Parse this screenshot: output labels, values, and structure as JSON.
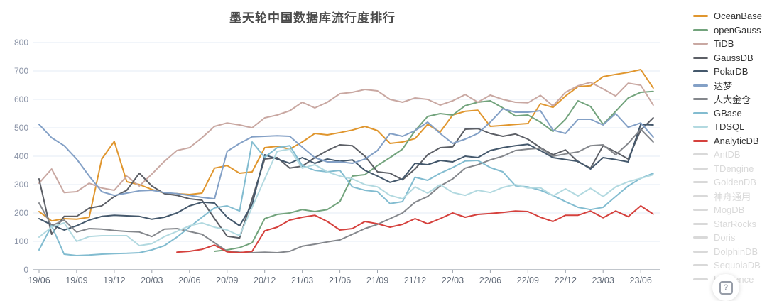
{
  "title": "墨天轮中国数据库流行度排行",
  "help_badge": {
    "icon": "?"
  },
  "colors": {
    "grid": "#E3EBF5",
    "axis": "#9CA3AD",
    "y_label": "#8C95A8",
    "x_label": "#5F6876",
    "title": "#4A4A4A",
    "legend_active_text": "#333333",
    "legend_inactive": "#D9D9D9"
  },
  "legend": {
    "inactive_items": [
      "AntDB",
      "TDengine",
      "GoldenDB",
      "神舟通用",
      "MogDB",
      "StarRocks",
      "Doris",
      "DolphinDB",
      "SequoiaDB",
      "Kyligence"
    ]
  },
  "chart_data": {
    "type": "line",
    "title": "墨天轮中国数据库流行度排行",
    "xlabel": "",
    "ylabel": "",
    "ylim": [
      0,
      800
    ],
    "yticks": [
      0,
      100,
      200,
      300,
      400,
      500,
      600,
      700,
      800
    ],
    "grid": true,
    "legend_position": "right",
    "x": [
      "19/06",
      "19/07",
      "19/08",
      "19/09",
      "19/10",
      "19/11",
      "19/12",
      "20/01",
      "20/02",
      "20/03",
      "20/04",
      "20/05",
      "20/06",
      "20/07",
      "20/08",
      "20/09",
      "20/10",
      "20/11",
      "20/12",
      "21/01",
      "21/02",
      "21/03",
      "21/04",
      "21/05",
      "21/06",
      "21/07",
      "21/08",
      "21/09",
      "21/10",
      "21/11",
      "21/12",
      "22/01",
      "22/02",
      "22/03",
      "22/04",
      "22/05",
      "22/06",
      "22/07",
      "22/08",
      "22/09",
      "22/10",
      "22/11",
      "22/12",
      "23/01",
      "23/02",
      "23/03",
      "23/04",
      "23/05",
      "23/06",
      "23/07"
    ],
    "x_tick_labels": [
      "19/06",
      "19/09",
      "19/12",
      "20/03",
      "20/06",
      "20/09",
      "20/12",
      "21/03",
      "21/06",
      "21/09",
      "21/12",
      "22/03",
      "22/06",
      "22/09",
      "22/12",
      "23/03",
      "23/06"
    ],
    "series": [
      {
        "name": "OceanBase",
        "color": "#E0962E",
        "values": [
          205,
          172,
          180,
          178,
          185,
          390,
          452,
          310,
          300,
          283,
          270,
          268,
          265,
          270,
          358,
          367,
          340,
          345,
          430,
          435,
          425,
          450,
          480,
          475,
          483,
          492,
          505,
          490,
          445,
          450,
          462,
          512,
          485,
          545,
          558,
          562,
          505,
          508,
          512,
          515,
          585,
          572,
          612,
          645,
          648,
          680,
          688,
          695,
          705,
          640
        ]
      },
      {
        "name": "openGauss",
        "color": "#72A37C",
        "values": [
          null,
          null,
          null,
          null,
          null,
          null,
          null,
          null,
          null,
          null,
          null,
          null,
          null,
          null,
          65,
          70,
          78,
          95,
          180,
          195,
          200,
          212,
          205,
          212,
          240,
          330,
          335,
          367,
          395,
          425,
          490,
          540,
          550,
          545,
          578,
          590,
          595,
          570,
          542,
          545,
          520,
          487,
          530,
          595,
          575,
          512,
          558,
          605,
          625,
          628
        ]
      },
      {
        "name": "TiDB",
        "color": "#C9A8A2",
        "values": [
          305,
          355,
          272,
          275,
          305,
          288,
          280,
          330,
          295,
          337,
          382,
          420,
          430,
          465,
          505,
          517,
          510,
          500,
          535,
          545,
          560,
          590,
          570,
          590,
          620,
          625,
          635,
          630,
          600,
          590,
          605,
          600,
          580,
          595,
          617,
          590,
          615,
          600,
          590,
          588,
          614,
          577,
          625,
          648,
          660,
          637,
          612,
          657,
          650,
          580
        ]
      },
      {
        "name": "GaussDB",
        "color": "#5C5F66",
        "values": [
          320,
          125,
          188,
          188,
          217,
          225,
          258,
          280,
          340,
          295,
          268,
          262,
          250,
          245,
          180,
          118,
          112,
          250,
          390,
          395,
          358,
          365,
          395,
          420,
          440,
          437,
          400,
          345,
          340,
          317,
          355,
          405,
          430,
          433,
          495,
          497,
          480,
          470,
          478,
          460,
          430,
          405,
          422,
          380,
          358,
          437,
          415,
          390,
          492,
          535
        ]
      },
      {
        "name": "PolarDB",
        "color": "#44586C",
        "values": [
          180,
          158,
          140,
          155,
          175,
          188,
          192,
          190,
          188,
          178,
          185,
          200,
          225,
          238,
          235,
          185,
          155,
          230,
          405,
          390,
          375,
          395,
          375,
          390,
          382,
          387,
          350,
          330,
          308,
          320,
          375,
          370,
          385,
          380,
          400,
          395,
          420,
          430,
          437,
          442,
          420,
          395,
          388,
          382,
          355,
          395,
          388,
          380,
          512,
          510
        ]
      },
      {
        "name": "达梦",
        "color": "#83A0C6",
        "values": [
          512,
          465,
          437,
          390,
          330,
          275,
          262,
          270,
          278,
          280,
          272,
          268,
          262,
          255,
          250,
          417,
          445,
          468,
          470,
          472,
          470,
          432,
          395,
          380,
          380,
          375,
          390,
          420,
          480,
          470,
          490,
          520,
          480,
          445,
          460,
          480,
          520,
          567,
          555,
          555,
          560,
          492,
          480,
          530,
          530,
          510,
          550,
          502,
          517,
          467
        ]
      },
      {
        "name": "人大金仓",
        "color": "#84878C",
        "values": [
          235,
          155,
          175,
          133,
          145,
          143,
          138,
          135,
          133,
          117,
          143,
          145,
          135,
          125,
          95,
          65,
          62,
          60,
          62,
          60,
          65,
          83,
          90,
          98,
          105,
          125,
          145,
          160,
          180,
          200,
          238,
          258,
          295,
          320,
          358,
          370,
          387,
          400,
          420,
          425,
          428,
          400,
          408,
          415,
          437,
          440,
          405,
          445,
          495,
          450
        ]
      },
      {
        "name": "GBase",
        "color": "#82BCD0",
        "values": [
          70,
          155,
          55,
          50,
          52,
          55,
          57,
          58,
          60,
          70,
          85,
          115,
          150,
          185,
          218,
          225,
          207,
          450,
          396,
          430,
          437,
          367,
          350,
          345,
          350,
          292,
          280,
          275,
          233,
          240,
          326,
          315,
          340,
          360,
          383,
          385,
          360,
          345,
          296,
          292,
          280,
          262,
          240,
          220,
          212,
          220,
          258,
          295,
          322,
          340
        ]
      },
      {
        "name": "TDSQL",
        "color": "#B2D9E0",
        "values": [
          115,
          150,
          165,
          100,
          117,
          120,
          120,
          120,
          85,
          92,
          117,
          135,
          155,
          165,
          150,
          140,
          120,
          220,
          320,
          417,
          425,
          358,
          370,
          345,
          330,
          320,
          300,
          292,
          262,
          250,
          292,
          270,
          300,
          272,
          262,
          280,
          272,
          290,
          300,
          288,
          289,
          260,
          285,
          260,
          287,
          258,
          292,
          310,
          322,
          335
        ]
      },
      {
        "name": "AnalyticDB",
        "color": "#D5413D",
        "values": [
          null,
          null,
          null,
          null,
          null,
          null,
          null,
          null,
          null,
          null,
          null,
          62,
          65,
          72,
          87,
          63,
          60,
          65,
          137,
          150,
          175,
          185,
          192,
          170,
          140,
          145,
          170,
          162,
          150,
          160,
          180,
          162,
          180,
          200,
          185,
          195,
          198,
          202,
          207,
          205,
          185,
          170,
          192,
          192,
          207,
          183,
          207,
          187,
          225,
          196
        ]
      }
    ]
  }
}
